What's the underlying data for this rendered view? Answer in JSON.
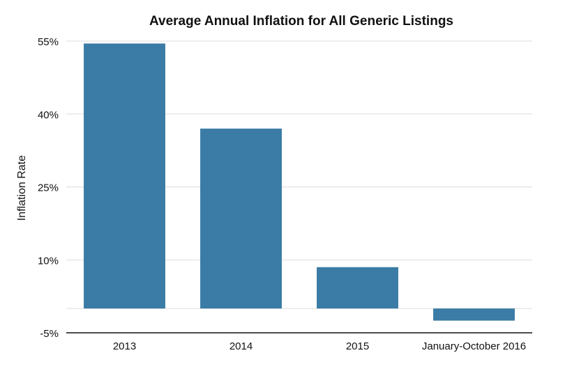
{
  "chart_data": {
    "type": "bar",
    "title": "Average Annual Inflation for All Generic Listings",
    "xlabel": "",
    "ylabel": "Inflation Rate",
    "categories": [
      "2013",
      "2014",
      "2015",
      "January-October 2016"
    ],
    "values": [
      54.5,
      37,
      8.5,
      -2.5
    ],
    "ylim": [
      -5,
      55
    ],
    "yticks": [
      -5,
      10,
      25,
      40,
      55
    ],
    "ytick_labels": [
      "-5%",
      "10%",
      "25%",
      "40%",
      "55%"
    ],
    "grid": true,
    "legend": "none",
    "bar_color": "#3a7ca5"
  }
}
